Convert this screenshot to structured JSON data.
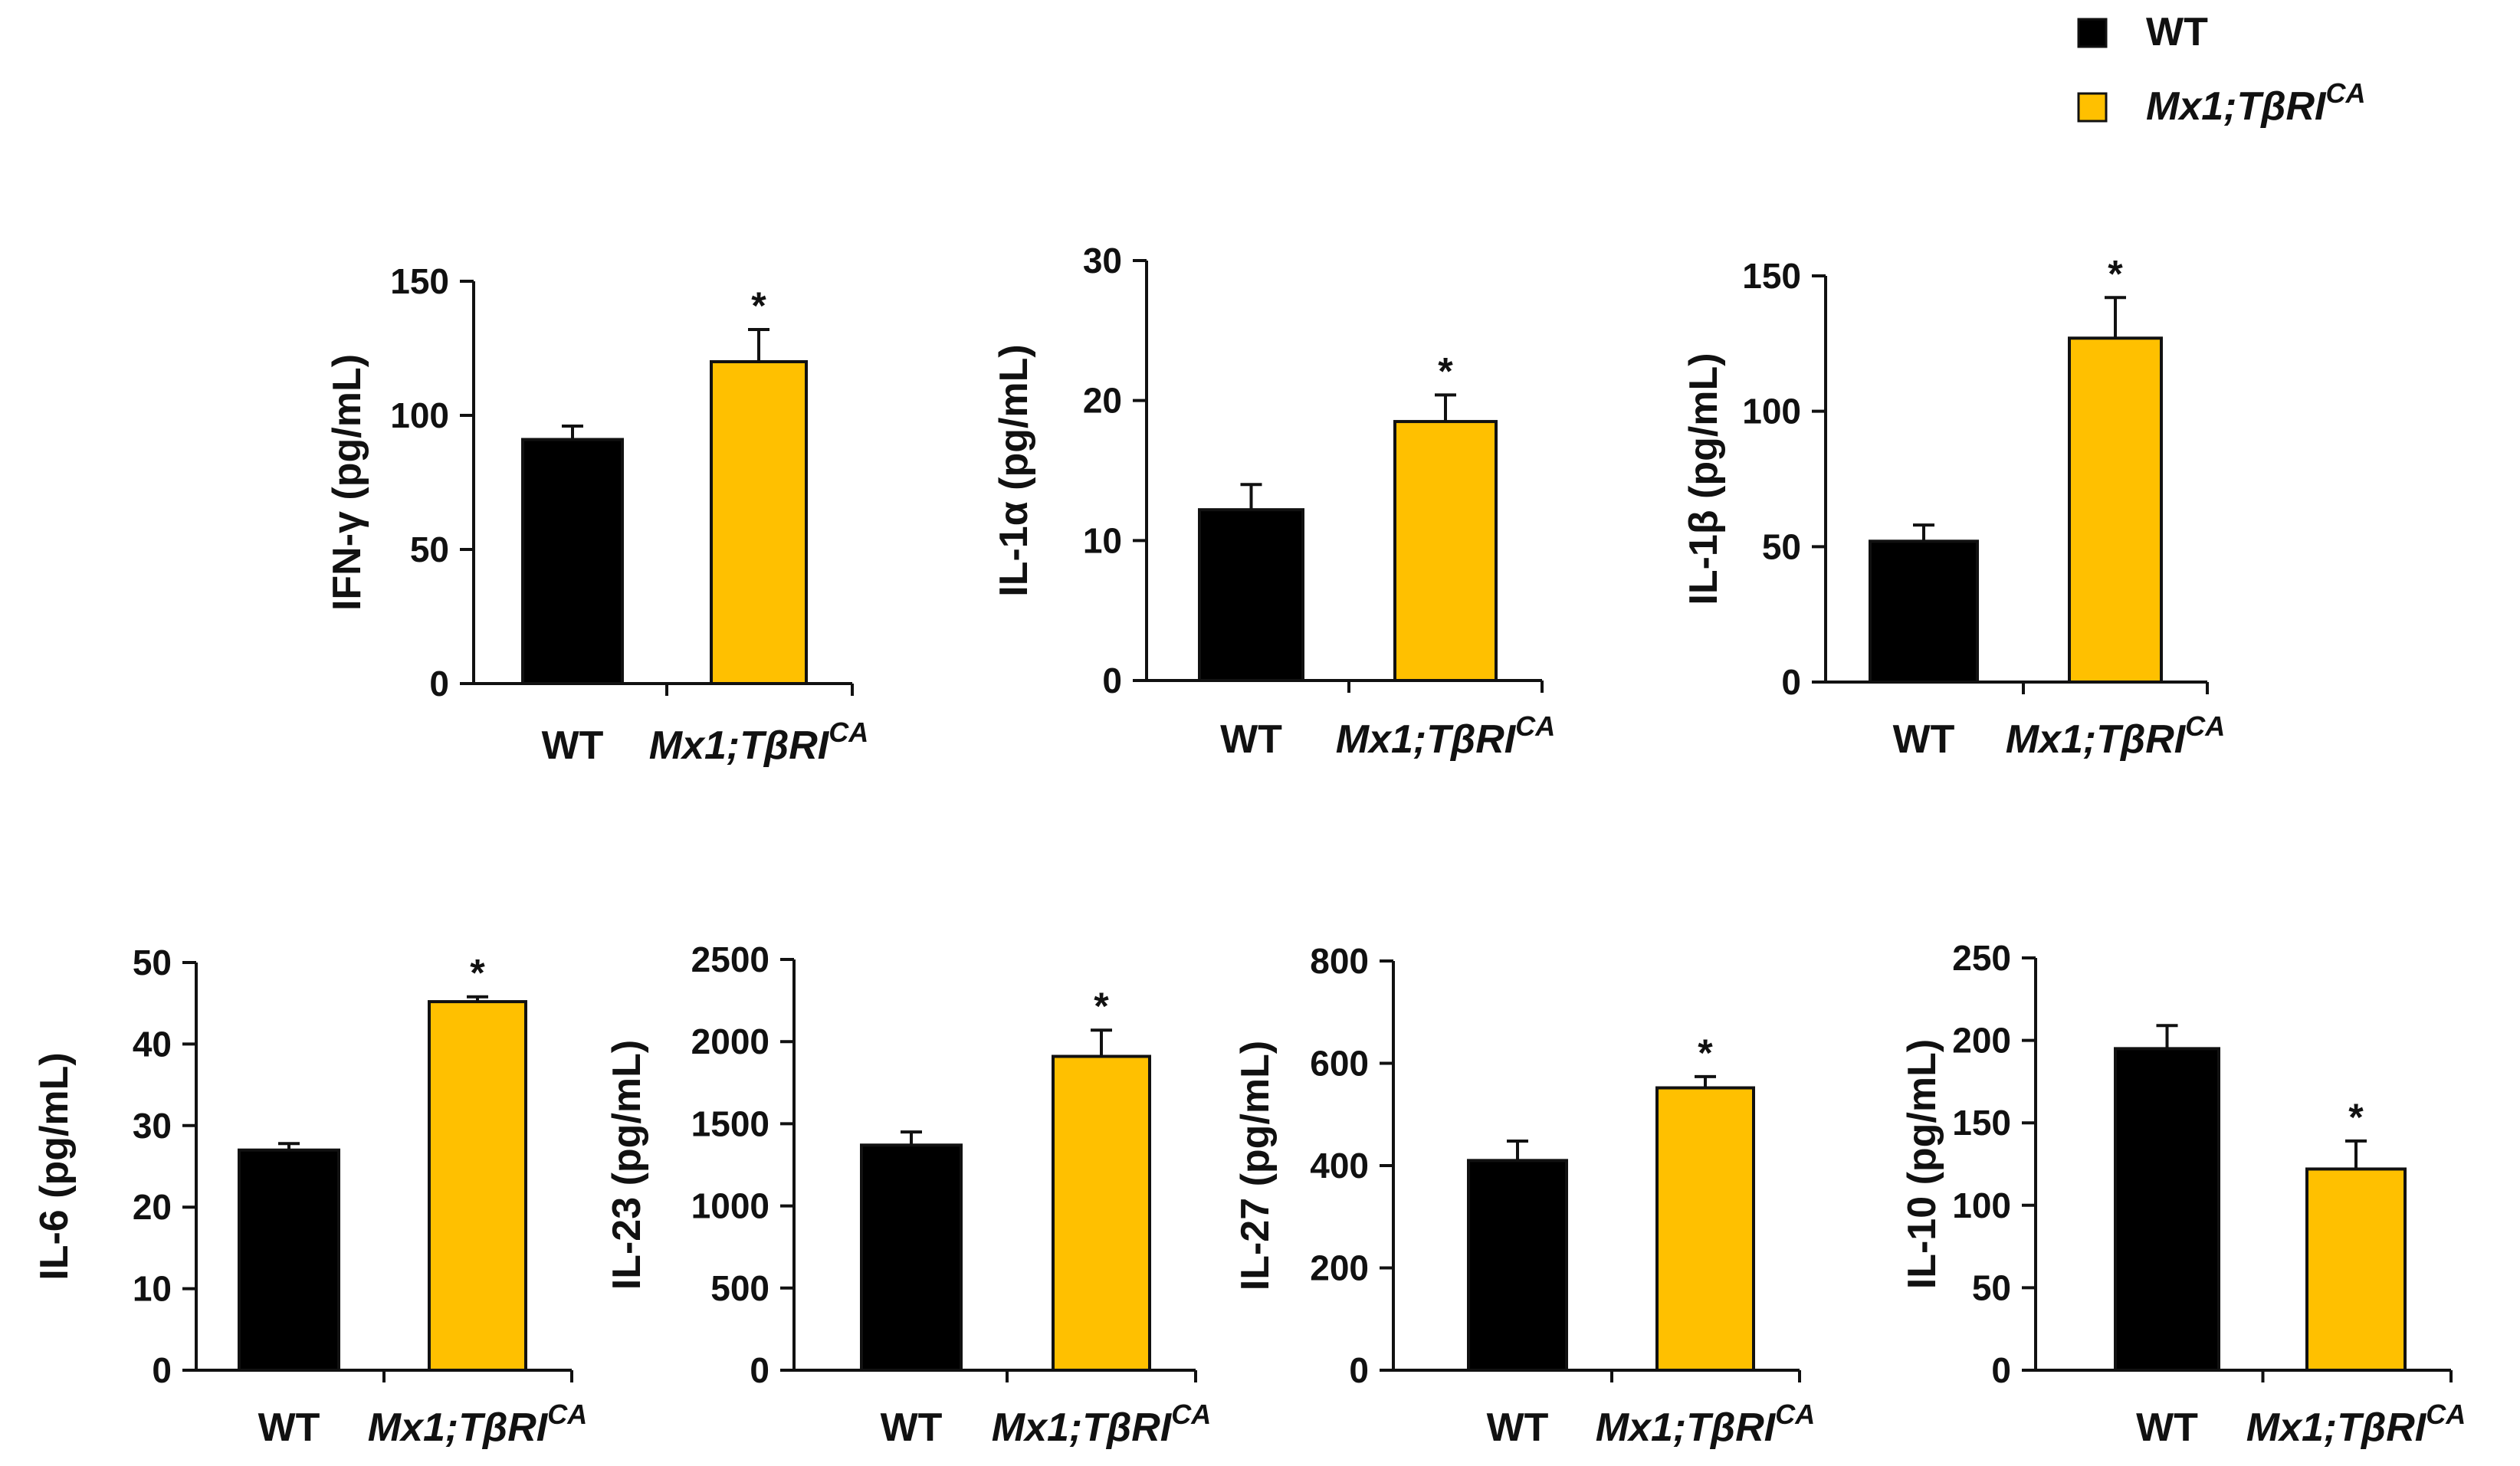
{
  "legend": {
    "items": [
      {
        "label": "WT",
        "italic": false,
        "color": "#000000"
      },
      {
        "label": "Mx1;TβRI",
        "sup": "CA",
        "italic": true,
        "color": "#FFC000"
      }
    ]
  },
  "colors": {
    "wt": "#000000",
    "mutant": "#FFC000",
    "axis": "#111111"
  },
  "chart_data": [
    {
      "type": "bar",
      "ylabel": "IFN-γ (pg/mL)",
      "categories": [
        "WT",
        "Mx1;TβRI"
      ],
      "category_sup": [
        "",
        "CA"
      ],
      "values": [
        91,
        120
      ],
      "errors": [
        5,
        12
      ],
      "significance": [
        "",
        "*"
      ],
      "ylim": [
        0,
        150
      ],
      "yticks": [
        0,
        50,
        100,
        150
      ]
    },
    {
      "type": "bar",
      "ylabel": "IL-1α (pg/mL)",
      "categories": [
        "WT",
        "Mx1;TβRI"
      ],
      "category_sup": [
        "",
        "CA"
      ],
      "values": [
        12.2,
        18.5
      ],
      "errors": [
        1.8,
        1.9
      ],
      "significance": [
        "",
        "*"
      ],
      "ylim": [
        0,
        30
      ],
      "yticks": [
        0,
        10,
        20,
        30
      ]
    },
    {
      "type": "bar",
      "ylabel": "IL-1β (pg/mL)",
      "categories": [
        "WT",
        "Mx1;TβRI"
      ],
      "category_sup": [
        "",
        "CA"
      ],
      "values": [
        52,
        127
      ],
      "errors": [
        6,
        15
      ],
      "significance": [
        "",
        "*"
      ],
      "ylim": [
        0,
        150
      ],
      "yticks": [
        0,
        50,
        100,
        150
      ]
    },
    {
      "type": "bar",
      "ylabel": "IL-6 (pg/mL)",
      "categories": [
        "WT",
        "Mx1;TβRI"
      ],
      "category_sup": [
        "",
        "CA"
      ],
      "values": [
        27,
        45.2
      ],
      "errors": [
        0.8,
        0.6
      ],
      "significance": [
        "",
        "*"
      ],
      "ylim": [
        0,
        50
      ],
      "yticks": [
        0,
        10,
        20,
        30,
        40,
        50
      ]
    },
    {
      "type": "bar",
      "ylabel": "IL-23 (pg/mL)",
      "categories": [
        "WT",
        "Mx1;TβRI"
      ],
      "category_sup": [
        "",
        "CA"
      ],
      "values": [
        1370,
        1910
      ],
      "errors": [
        80,
        160
      ],
      "significance": [
        "",
        "*"
      ],
      "ylim": [
        0,
        2500
      ],
      "yticks": [
        0,
        500,
        1000,
        1500,
        2000,
        2500
      ]
    },
    {
      "type": "bar",
      "ylabel": "IL-27 (pg/mL)",
      "categories": [
        "WT",
        "Mx1;TβRI"
      ],
      "category_sup": [
        "",
        "CA"
      ],
      "values": [
        410,
        552
      ],
      "errors": [
        38,
        22
      ],
      "significance": [
        "",
        "*"
      ],
      "ylim": [
        0,
        800
      ],
      "yticks": [
        0,
        200,
        400,
        600,
        800
      ]
    },
    {
      "type": "bar",
      "ylabel": "IL-10 (pg/mL)",
      "categories": [
        "WT",
        "Mx1;TβRI"
      ],
      "category_sup": [
        "",
        "CA"
      ],
      "values": [
        195,
        122
      ],
      "errors": [
        14,
        17
      ],
      "significance": [
        "",
        "*"
      ],
      "ylim": [
        0,
        250
      ],
      "yticks": [
        0,
        50,
        100,
        150,
        200,
        250
      ]
    }
  ]
}
